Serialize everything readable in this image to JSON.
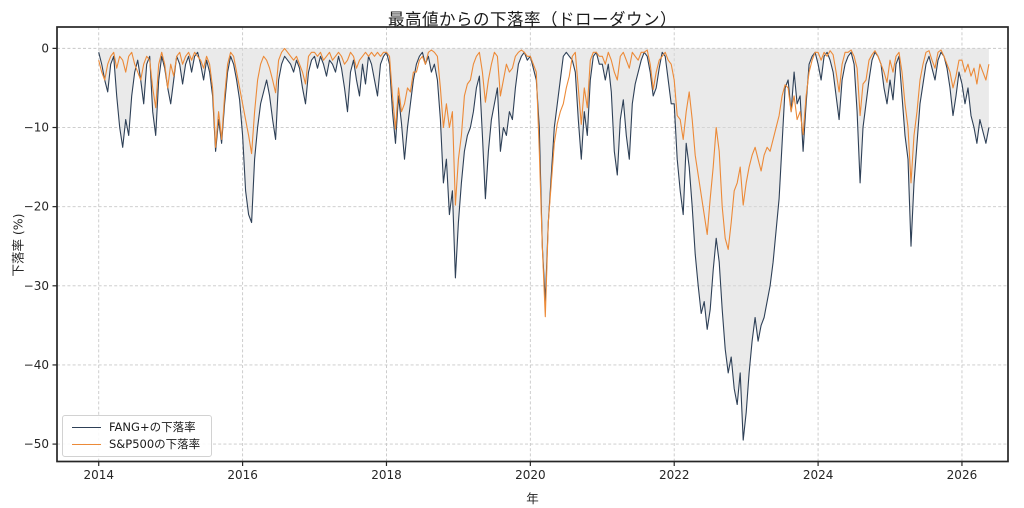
{
  "chart_data": {
    "type": "line",
    "title": "最高値からの下落率（ドローダウン）",
    "xlabel": "年",
    "ylabel": "下落率 (%)",
    "x_start": 2014.0,
    "x_step_years": 0.0416667,
    "x_ticks": [
      2014,
      2016,
      2018,
      2020,
      2022,
      2024,
      2026
    ],
    "y_ticks": [
      0,
      -10,
      -20,
      -30,
      -40,
      -50
    ],
    "xlim": [
      2013.42,
      2026.64
    ],
    "ylim": [
      -52.2,
      2.7
    ],
    "grid": "dashed",
    "grid_color": "#c8c8c8",
    "spine_color": "#262626",
    "legend_position": "lower-left",
    "series": [
      {
        "name": "FANG+の下落率",
        "color": "#2e4057",
        "fill_to_zero": true,
        "fill_color": "#d9d9d9",
        "values": [
          -0.5,
          -2,
          -4,
          -5.5,
          -2,
          -1,
          -6,
          -10,
          -12.5,
          -9,
          -11,
          -6,
          -3,
          -1.5,
          -4,
          -7,
          -2,
          -1,
          -8,
          -11,
          -4,
          -1,
          -2.5,
          -5,
          -7,
          -4,
          -1,
          -2,
          -4.5,
          -2,
          -1,
          -3,
          -1,
          -0.5,
          -2,
          -4,
          -1.5,
          -3,
          -6,
          -13,
          -9,
          -12,
          -7,
          -3,
          -1,
          -2,
          -4,
          -6.5,
          -11,
          -18,
          -21,
          -22,
          -14,
          -10,
          -7,
          -5.5,
          -4,
          -6,
          -9,
          -11.5,
          -4,
          -2,
          -1,
          -1.5,
          -2,
          -3,
          -1.5,
          -2.5,
          -5,
          -7,
          -3,
          -1.5,
          -1,
          -2.5,
          -1,
          -2,
          -3.5,
          -1.5,
          -2,
          -3,
          -1,
          -2.5,
          -5,
          -8,
          -3,
          -1.5,
          -4,
          -6,
          -2,
          -4.5,
          -1,
          -2,
          -4,
          -6,
          -2,
          -1,
          -0.5,
          -2,
          -8,
          -12,
          -6,
          -9.5,
          -14,
          -10,
          -7,
          -4,
          -2,
          -1,
          -0.5,
          -2,
          -1,
          -3,
          -2,
          -4,
          -9,
          -17,
          -14,
          -21,
          -18,
          -29,
          -22,
          -17,
          -13,
          -11,
          -10,
          -8,
          -5,
          -3.5,
          -11,
          -19,
          -13,
          -9,
          -7,
          -5,
          -13,
          -10,
          -11,
          -8,
          -9,
          -5,
          -2,
          -1,
          -0.5,
          -1.5,
          -1,
          -2.5,
          -4,
          -10,
          -25,
          -32,
          -22,
          -16,
          -10,
          -7,
          -4,
          -1,
          -0.5,
          -1,
          -1.5,
          -3,
          -9,
          -14,
          -8,
          -11,
          -4,
          -1,
          -0.5,
          -2,
          -2,
          -4,
          -2,
          -5.5,
          -13,
          -16,
          -9,
          -6.5,
          -11,
          -14,
          -7,
          -4.5,
          -3,
          -1.5,
          -0.5,
          -1,
          -3,
          -6,
          -5,
          -2.5,
          -0.5,
          -1,
          -4,
          -7,
          -7,
          -14,
          -18,
          -21,
          -12,
          -15,
          -20,
          -26,
          -30,
          -33.5,
          -32,
          -35.5,
          -33,
          -28,
          -24,
          -27,
          -33,
          -38,
          -41,
          -39,
          -43,
          -45,
          -41,
          -49.5,
          -46,
          -41,
          -37,
          -34,
          -37,
          -35,
          -34,
          -32,
          -30,
          -27,
          -23,
          -19,
          -12,
          -5,
          -4,
          -8,
          -3,
          -7,
          -6,
          -13,
          -7,
          -2,
          -1,
          -0.5,
          -2,
          -4,
          -1,
          -0.5,
          -1.5,
          -3,
          -6,
          -9,
          -4,
          -2,
          -1,
          -0.5,
          -2,
          -8,
          -17,
          -10,
          -7,
          -4,
          -1.5,
          -0.5,
          -1,
          -2,
          -5,
          -7,
          -4,
          -6.5,
          -2,
          -1,
          -6,
          -11,
          -14,
          -25,
          -17,
          -12,
          -7,
          -4.5,
          -2,
          -1,
          -2.5,
          -4,
          -1.5,
          -0.5,
          -1,
          -2.5,
          -5,
          -8.5,
          -6,
          -3,
          -4.5,
          -7,
          -5,
          -8.5,
          -10,
          -12,
          -9,
          -10.5,
          -12,
          -10
        ]
      },
      {
        "name": "S&P500の下落率",
        "color": "#ec8a38",
        "fill_to_zero": false,
        "values": [
          -1.5,
          -3,
          -4,
          -2,
          -1,
          -0.5,
          -2.5,
          -1,
          -1.5,
          -3,
          -1,
          -0.5,
          -2,
          -3,
          -4,
          -2,
          -1,
          -1.5,
          -5,
          -7.5,
          -2,
          -0.5,
          -2,
          -5,
          -2,
          -3.5,
          -1,
          -0.5,
          -2,
          -1,
          -0.5,
          -1.5,
          -0.5,
          -1,
          -1.5,
          -2.5,
          -1,
          -2,
          -5,
          -12.5,
          -8,
          -11.5,
          -6,
          -2,
          -0.5,
          -1,
          -3,
          -5,
          -7,
          -9,
          -11,
          -13.3,
          -8,
          -4,
          -2,
          -1,
          -1.5,
          -2.5,
          -4,
          -5.6,
          -1.5,
          -0.5,
          0,
          -0.5,
          -1,
          -1.5,
          -1,
          -2,
          -3,
          -4.5,
          -1,
          -0.5,
          -0.5,
          -1,
          -0.5,
          -1.5,
          -1,
          -0.5,
          -1.5,
          -1,
          -0.5,
          -1,
          -2,
          -1.5,
          -0.5,
          -1,
          -2.5,
          -1.5,
          -1,
          -0.5,
          -1,
          -0.5,
          -1,
          -0.5,
          -1,
          -0.5,
          -0.5,
          -1,
          -6,
          -10.2,
          -5,
          -8,
          -7,
          -5,
          -5.5,
          -3,
          -3,
          -1.5,
          -1,
          -2,
          -0.5,
          -0.2,
          -0.5,
          -1,
          -5,
          -10,
          -7,
          -10,
          -8,
          -19.8,
          -14,
          -11,
          -6,
          -4.5,
          -4,
          -2,
          -1,
          -0.5,
          -3,
          -6.8,
          -4,
          -2,
          -0.5,
          -1,
          -6,
          -4,
          -2,
          -3,
          -2.5,
          -1,
          -0.5,
          -0.2,
          -0.5,
          -1,
          -1,
          -2,
          -3,
          -13,
          -25,
          -33.9,
          -22,
          -17,
          -12,
          -9.5,
          -8,
          -7,
          -5,
          -3.5,
          -1,
          -0.5,
          -5,
          -9.6,
          -5,
          -7.5,
          -1.5,
          -0.5,
          -0.5,
          -1,
          -1,
          -2,
          -0.5,
          -1.5,
          -3,
          -4,
          -1,
          -0.5,
          -1.5,
          -2.5,
          -0.5,
          -1,
          -1.5,
          -0.5,
          -0.5,
          -0.2,
          -2,
          -5.2,
          -3,
          -1.5,
          -1,
          -0.5,
          -1.5,
          -2,
          -4,
          -8.5,
          -9,
          -11.5,
          -8,
          -5.5,
          -9,
          -13.5,
          -16,
          -18.5,
          -21,
          -23.5,
          -19,
          -15,
          -10,
          -13,
          -20,
          -24,
          -25.4,
          -22,
          -18,
          -17,
          -15,
          -19.8,
          -17,
          -15,
          -13.5,
          -12.5,
          -14,
          -15.5,
          -13.5,
          -12.5,
          -13,
          -11.5,
          -10,
          -8.5,
          -6,
          -4.6,
          -5,
          -8,
          -6,
          -9,
          -8,
          -10.9,
          -6,
          -3,
          -1.5,
          -0.5,
          -0.5,
          -1.5,
          -0.5,
          -1,
          -0.3,
          -0.8,
          -3,
          -5.5,
          -2,
          -0.5,
          -0.5,
          -0.2,
          -1,
          -2.5,
          -8.5,
          -4.5,
          -4,
          -1.5,
          -0.8,
          -0.3,
          -1,
          -2,
          -3,
          -4.3,
          -1.5,
          -3,
          -1,
          -0.5,
          -3,
          -7,
          -10,
          -17,
          -11,
          -8,
          -4,
          -2,
          -0.5,
          -0.3,
          -1.5,
          -2.5,
          -0.5,
          -0.2,
          -1,
          -2,
          -3,
          -5,
          -3.5,
          -1.5,
          -1.5,
          -3,
          -2,
          -3.5,
          -2.5,
          -4.5,
          -2,
          -3,
          -4,
          -2
        ]
      }
    ]
  }
}
